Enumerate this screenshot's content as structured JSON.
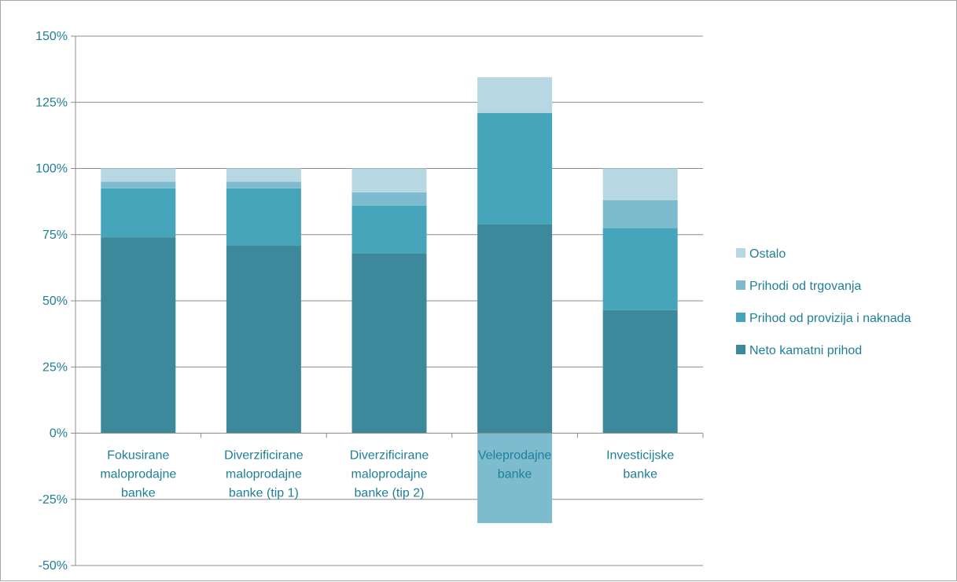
{
  "chart_data": {
    "type": "bar",
    "stacked": true,
    "categories": [
      [
        "Fokusirane",
        "maloprodajne",
        "banke"
      ],
      [
        "Diverzificirane",
        "maloprodajne",
        "banke (tip 1)"
      ],
      [
        "Diverzificirane",
        "maloprodajne",
        "banke (tip 2)"
      ],
      [
        "Veleprodajne",
        "banke"
      ],
      [
        "Investicijske",
        "banke"
      ]
    ],
    "series": [
      {
        "name": "Neto kamatni prihod",
        "color": "#3b899b",
        "values": [
          74,
          71,
          68,
          79,
          46.5
        ]
      },
      {
        "name": "Prihod od provizija i naknada",
        "color": "#46a4bb",
        "values": [
          18.5,
          21.5,
          18,
          42,
          31
        ]
      },
      {
        "name": "Prihodi od trgovanja",
        "color": "#7dbccf",
        "values": [
          2.5,
          2.5,
          5,
          -34,
          10.5
        ]
      },
      {
        "name": "Ostalo",
        "color": "#b7d7e2",
        "values": [
          5,
          5,
          9,
          13.5,
          12
        ]
      }
    ],
    "yticks": [
      "150%",
      "125%",
      "100%",
      "75%",
      "50%",
      "25%",
      "0%",
      "-25%",
      "-50%"
    ],
    "ylim": [
      -50,
      150
    ],
    "grid": true,
    "legend_position": "right"
  }
}
